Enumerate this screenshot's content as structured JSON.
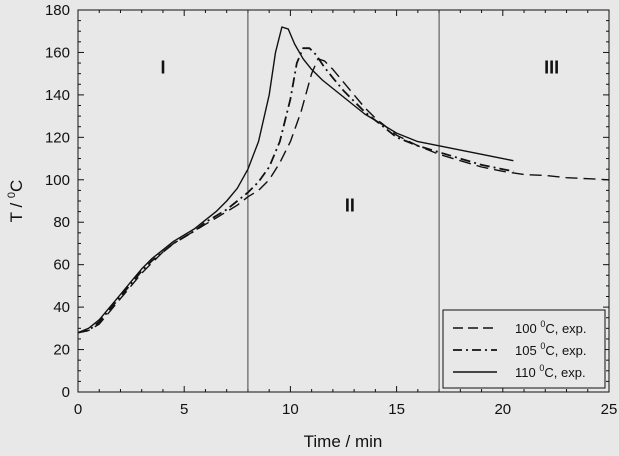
{
  "chart_data": {
    "type": "line",
    "title": "",
    "xlabel": "Time / min",
    "ylabel": "T / ",
    "ylabel_sup": "0",
    "ylabel_unit": "C",
    "xlim": [
      0,
      25
    ],
    "ylim": [
      0,
      180
    ],
    "xticks": [
      0,
      5,
      10,
      15,
      20,
      25
    ],
    "yticks": [
      0,
      20,
      40,
      60,
      80,
      100,
      120,
      140,
      160,
      180
    ],
    "grid": false,
    "legend_position": "bottom-right",
    "regions": [
      {
        "label": "I",
        "x": 4,
        "y": 150
      },
      {
        "label": "II",
        "x": 12.8,
        "y": 85
      },
      {
        "label": "III",
        "x": 22.3,
        "y": 150
      }
    ],
    "region_boundaries": [
      8,
      17
    ],
    "series": [
      {
        "name": "100",
        "legend_sup": "0",
        "legend_suffix": "C, exp.",
        "style": "dashed",
        "points": [
          [
            0,
            28
          ],
          [
            0.5,
            29
          ],
          [
            1,
            32
          ],
          [
            1.5,
            38
          ],
          [
            2,
            44
          ],
          [
            2.5,
            50
          ],
          [
            3,
            56
          ],
          [
            3.5,
            61
          ],
          [
            4,
            66
          ],
          [
            4.5,
            70
          ],
          [
            5,
            73
          ],
          [
            5.5,
            76
          ],
          [
            6,
            79
          ],
          [
            6.5,
            82
          ],
          [
            7,
            85
          ],
          [
            7.5,
            88
          ],
          [
            8,
            92
          ],
          [
            8.5,
            95
          ],
          [
            9,
            100
          ],
          [
            9.5,
            108
          ],
          [
            10,
            118
          ],
          [
            10.5,
            132
          ],
          [
            11,
            150
          ],
          [
            11.3,
            157
          ],
          [
            11.6,
            156
          ],
          [
            12,
            152
          ],
          [
            12.5,
            146
          ],
          [
            13,
            140
          ],
          [
            13.5,
            134
          ],
          [
            14,
            129
          ],
          [
            14.5,
            125
          ],
          [
            15,
            121
          ],
          [
            16,
            116
          ],
          [
            17,
            112
          ],
          [
            18,
            109
          ],
          [
            19,
            106
          ],
          [
            20,
            104
          ],
          [
            21,
            102.5
          ],
          [
            22,
            102
          ],
          [
            23,
            101
          ],
          [
            24,
            100.5
          ],
          [
            25,
            100
          ]
        ]
      },
      {
        "name": "105",
        "legend_sup": "0",
        "legend_suffix": "C, exp.",
        "style": "dashdot",
        "points": [
          [
            0,
            28
          ],
          [
            0.5,
            29
          ],
          [
            1,
            33
          ],
          [
            1.5,
            39
          ],
          [
            2,
            45
          ],
          [
            2.5,
            51
          ],
          [
            3,
            57
          ],
          [
            3.5,
            62
          ],
          [
            4,
            66
          ],
          [
            4.5,
            70
          ],
          [
            5,
            73
          ],
          [
            5.5,
            76
          ],
          [
            6,
            80
          ],
          [
            6.5,
            83
          ],
          [
            7,
            86
          ],
          [
            7.5,
            90
          ],
          [
            8,
            94
          ],
          [
            8.5,
            99
          ],
          [
            9,
            106
          ],
          [
            9.5,
            118
          ],
          [
            10,
            138
          ],
          [
            10.3,
            155
          ],
          [
            10.6,
            162
          ],
          [
            10.9,
            162
          ],
          [
            11.2,
            159
          ],
          [
            11.6,
            153
          ],
          [
            12,
            148
          ],
          [
            12.5,
            142
          ],
          [
            13,
            137
          ],
          [
            13.5,
            132
          ],
          [
            14,
            128
          ],
          [
            14.5,
            124
          ],
          [
            15,
            120
          ],
          [
            16,
            116
          ],
          [
            17,
            113
          ],
          [
            18,
            110
          ],
          [
            19,
            107
          ],
          [
            20,
            105
          ],
          [
            20.5,
            104
          ]
        ]
      },
      {
        "name": "110",
        "legend_sup": "0",
        "legend_suffix": "C, exp.",
        "style": "solid",
        "points": [
          [
            0,
            28
          ],
          [
            0.5,
            30
          ],
          [
            1,
            34
          ],
          [
            1.5,
            40
          ],
          [
            2,
            46
          ],
          [
            2.5,
            52
          ],
          [
            3,
            58
          ],
          [
            3.5,
            63
          ],
          [
            4,
            67
          ],
          [
            4.5,
            71
          ],
          [
            5,
            74
          ],
          [
            5.5,
            77
          ],
          [
            6,
            81
          ],
          [
            6.5,
            85
          ],
          [
            7,
            90
          ],
          [
            7.5,
            96
          ],
          [
            8,
            105
          ],
          [
            8.5,
            118
          ],
          [
            9,
            140
          ],
          [
            9.3,
            160
          ],
          [
            9.6,
            172
          ],
          [
            9.9,
            171
          ],
          [
            10.2,
            164
          ],
          [
            10.6,
            157
          ],
          [
            11,
            152
          ],
          [
            11.5,
            147
          ],
          [
            12,
            143
          ],
          [
            12.5,
            139
          ],
          [
            13,
            135
          ],
          [
            13.5,
            131
          ],
          [
            14,
            128
          ],
          [
            14.5,
            125
          ],
          [
            15,
            122
          ],
          [
            16,
            118
          ],
          [
            17,
            116
          ],
          [
            18,
            114
          ],
          [
            19,
            112
          ],
          [
            20,
            110
          ],
          [
            20.5,
            109
          ]
        ]
      }
    ]
  }
}
